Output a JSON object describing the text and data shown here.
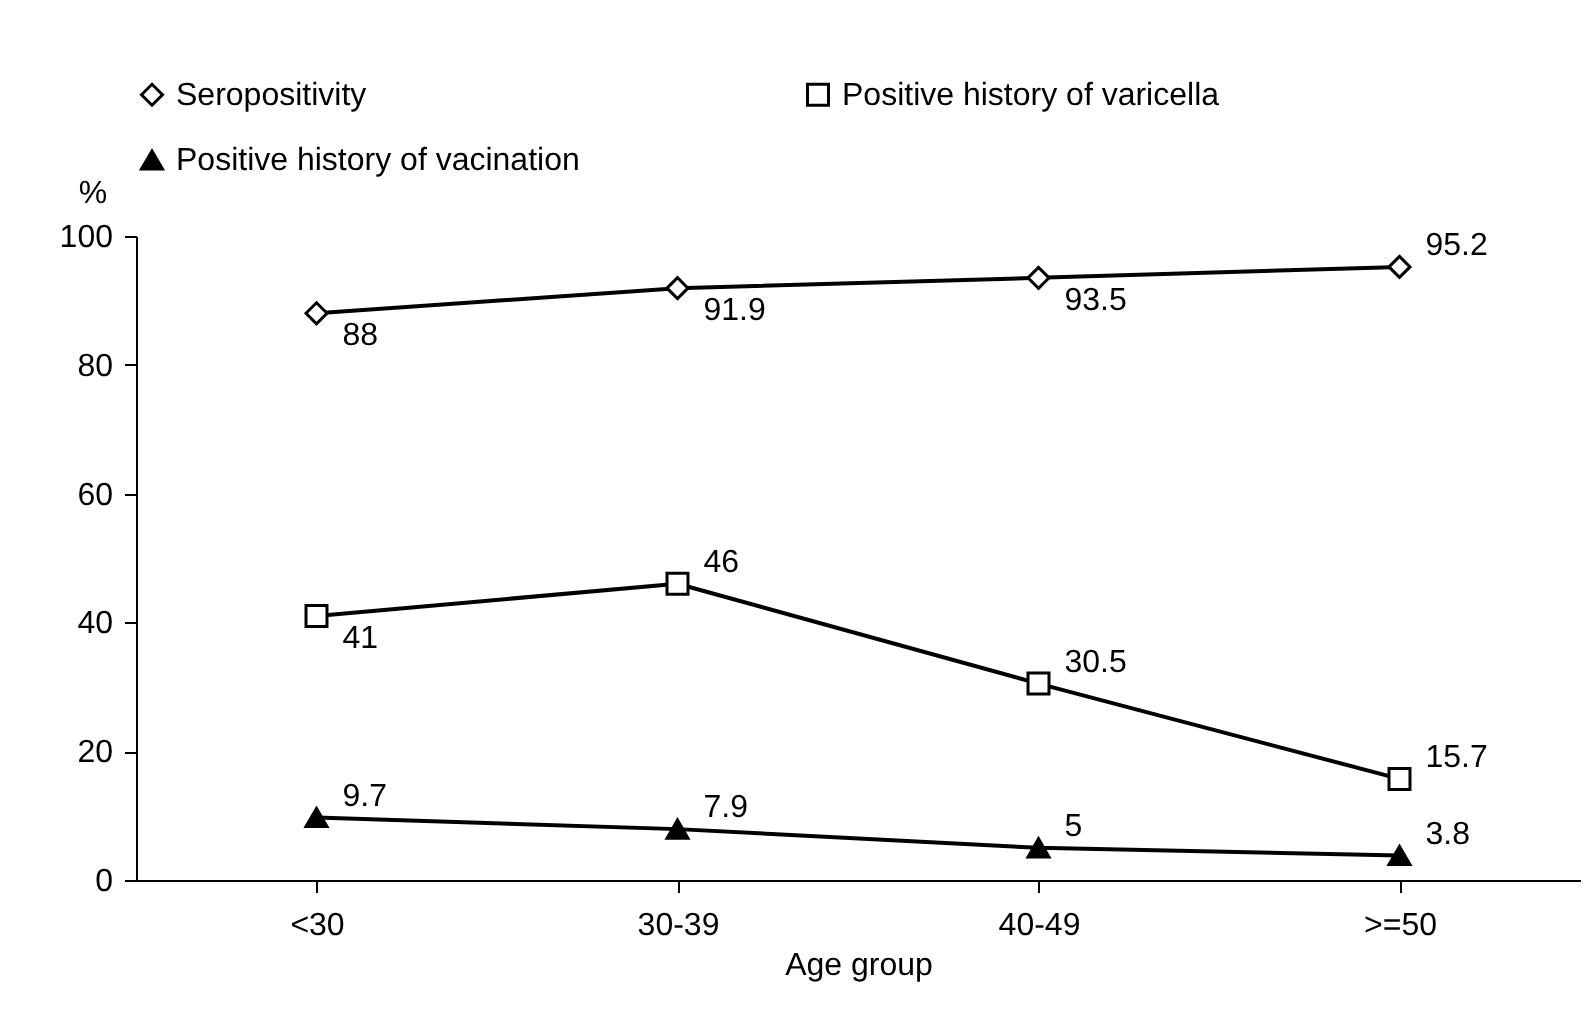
{
  "chart_data": {
    "type": "line",
    "xlabel": "Age group",
    "ylabel": "%",
    "categories": [
      "<30",
      "30-39",
      "40-49",
      ">=50"
    ],
    "series": [
      {
        "name": "Seropositivity",
        "color": "#000000",
        "marker": "diamond",
        "values": [
          88,
          91.9,
          93.5,
          95.2
        ]
      },
      {
        "name": "Positive history of varicella",
        "color": "#000000",
        "marker": "square",
        "values": [
          41,
          46,
          30.5,
          15.7
        ]
      },
      {
        "name": "Positive history of vacination",
        "color": "#000000",
        "marker": "triangle",
        "values": [
          9.7,
          7.9,
          5,
          3.8
        ]
      }
    ],
    "ylim": [
      0,
      100
    ],
    "yticks": [
      0,
      20,
      40,
      60,
      80,
      100
    ],
    "grid": false,
    "legend": "top",
    "data_labels": true
  }
}
